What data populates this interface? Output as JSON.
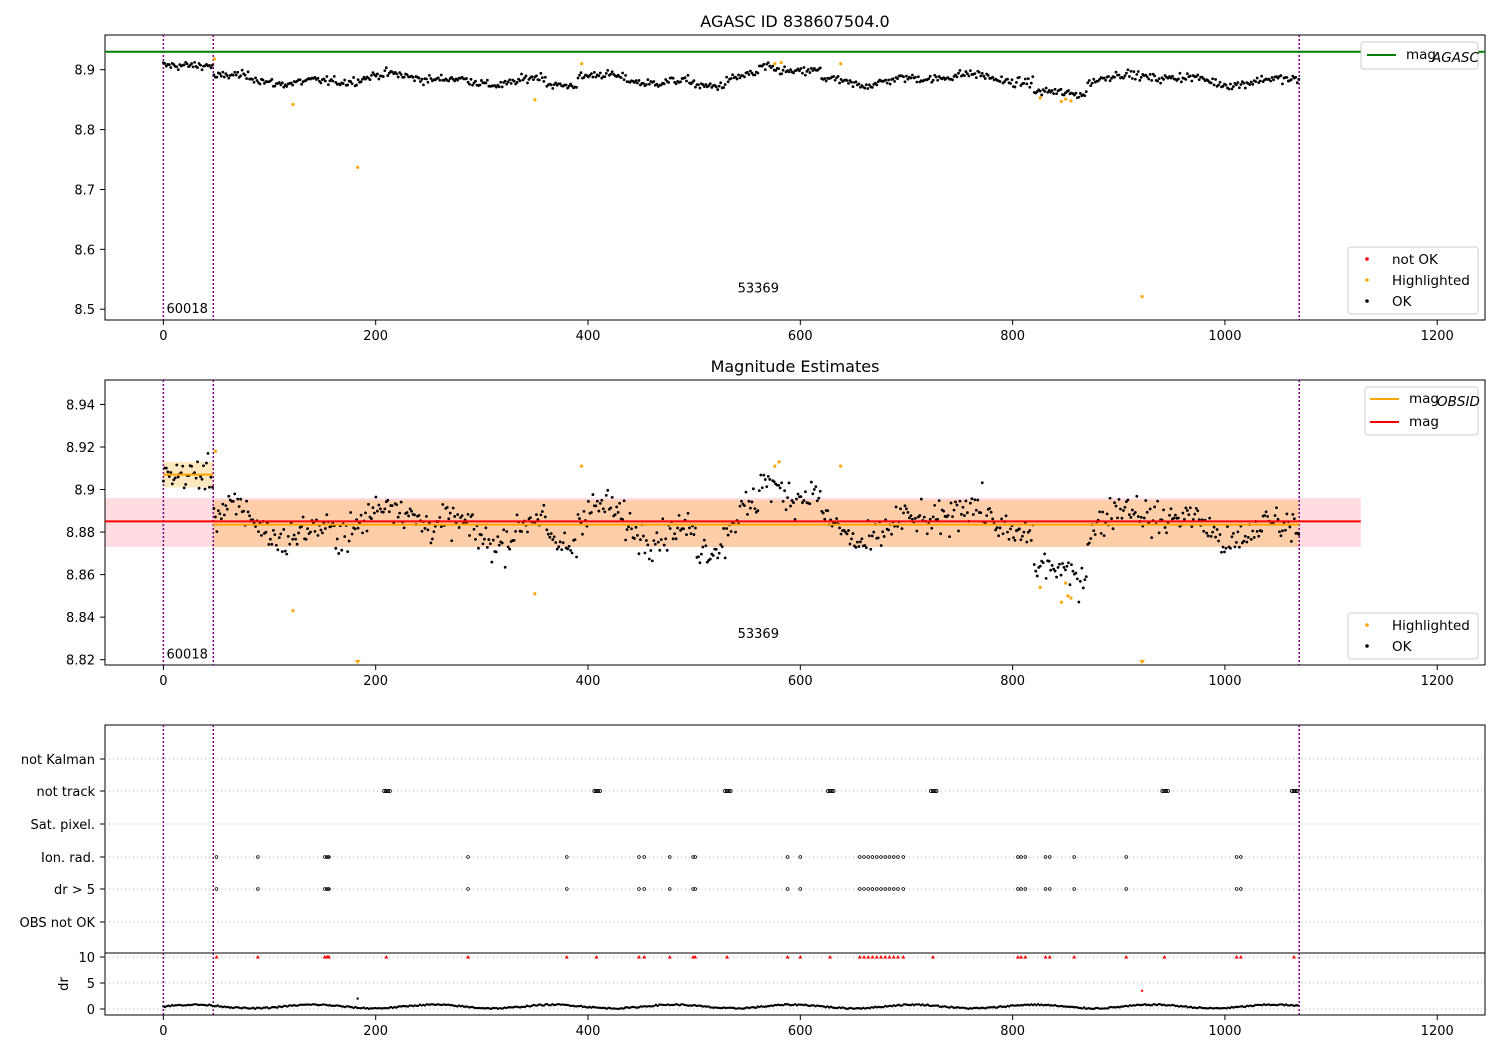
{
  "chart_data": [
    {
      "id": "top",
      "type": "scatter",
      "title": "AGASC ID 838607504.0",
      "xlim": [
        -55,
        1245
      ],
      "ylim": [
        8.482,
        8.958
      ],
      "xticks": [
        0,
        200,
        400,
        600,
        800,
        1000,
        1200
      ],
      "yticks": [
        8.5,
        8.6,
        8.7,
        8.8,
        8.9
      ],
      "hline": {
        "name": "mag_AGASC",
        "y": 8.93,
        "color": "#008000"
      },
      "vlines": {
        "x": [
          0,
          47,
          1070
        ],
        "color": "#800080"
      },
      "annotations": [
        {
          "text": "60018",
          "x": 2,
          "y": 8.5
        },
        {
          "text": "53369",
          "x": 540,
          "y": 8.535
        }
      ],
      "highlighted": [
        [
          48,
          8.918
        ],
        [
          122,
          8.842
        ],
        [
          183,
          8.737
        ],
        [
          350,
          8.85
        ],
        [
          394,
          8.91
        ],
        [
          576,
          8.91
        ],
        [
          582,
          8.912
        ],
        [
          638,
          8.91
        ],
        [
          826,
          8.853
        ],
        [
          846,
          8.847
        ],
        [
          850,
          8.851
        ],
        [
          855,
          8.848
        ],
        [
          922,
          8.521
        ]
      ],
      "legend_top": [
        {
          "label_main": "mag",
          "label_sub": "AGASC",
          "color": "#008000"
        }
      ],
      "legend_bottom": [
        {
          "label": "not OK",
          "color": "#ff0000"
        },
        {
          "label": "Highlighted",
          "color": "#ffa500"
        },
        {
          "label": "OK",
          "color": "#000000"
        }
      ],
      "colors": {
        "ok": "#000000",
        "highlighted": "#ffa500",
        "not_ok": "#ff0000"
      }
    },
    {
      "id": "middle",
      "type": "scatter",
      "title": "Magnitude Estimates",
      "xlim": [
        -55,
        1245
      ],
      "ylim": [
        8.8175,
        8.9515
      ],
      "xticks": [
        0,
        200,
        400,
        600,
        800,
        1000,
        1200
      ],
      "yticks": [
        8.82,
        8.84,
        8.86,
        8.88,
        8.9,
        8.92,
        8.94
      ],
      "mag": {
        "y": 8.885,
        "band": [
          8.873,
          8.896
        ],
        "x": [
          -55,
          1128
        ],
        "color": "#ff0000",
        "band_color": "#ffc0cb"
      },
      "mag_obsid": [
        {
          "x": [
            0,
            47
          ],
          "y": 8.907,
          "band": [
            8.901,
            8.913
          ]
        },
        {
          "x": [
            47,
            1070
          ],
          "y": 8.8835,
          "band": [
            8.873,
            8.895
          ]
        }
      ],
      "mag_obsid_color": "#ffa500",
      "vlines": {
        "x": [
          0,
          47,
          1070
        ],
        "color": "#800080"
      },
      "annotations": [
        {
          "text": "60018",
          "x": 2,
          "y": 8.8225
        },
        {
          "text": "53369",
          "x": 540,
          "y": 8.832
        }
      ],
      "highlighted": [
        [
          49,
          8.918
        ],
        [
          122,
          8.843
        ],
        [
          350,
          8.851
        ],
        [
          394,
          8.911
        ],
        [
          576,
          8.911
        ],
        [
          580,
          8.913
        ],
        [
          638,
          8.911
        ],
        [
          826,
          8.854
        ],
        [
          846,
          8.847
        ],
        [
          850,
          8.856
        ],
        [
          852,
          8.85
        ],
        [
          855,
          8.849
        ]
      ],
      "clipped_low": [
        183,
        922
      ],
      "legend_top": [
        {
          "label_main": "mag",
          "label_sub": "OBSID",
          "color": "#ffa500"
        },
        {
          "label_main": "mag",
          "label_sub": "",
          "color": "#ff0000"
        }
      ],
      "legend_bottom": [
        {
          "label": "Highlighted",
          "color": "#ffa500"
        },
        {
          "label": "OK",
          "color": "#000000"
        }
      ]
    },
    {
      "id": "flags",
      "type": "scatter",
      "xlim": [
        -55,
        1245
      ],
      "xticks": [
        0,
        200,
        400,
        600,
        800,
        1000,
        1200
      ],
      "categories": [
        "not Kalman",
        "not track",
        "Sat. pixel.",
        "Ion. rad.",
        "dr > 5",
        "OBS not OK"
      ],
      "vlines": {
        "x": [
          0,
          47,
          1070
        ],
        "color": "#800080"
      },
      "not_track_clusters": [
        210,
        408,
        531,
        628,
        725,
        943,
        1065
      ],
      "ion_rad_clusters": [
        50,
        89,
        152,
        154,
        155,
        156,
        287,
        380,
        448,
        453,
        477,
        499,
        501,
        588,
        600,
        656,
        660,
        664,
        668,
        672,
        676,
        680,
        684,
        688,
        692,
        697,
        805,
        808,
        812,
        831,
        835,
        858,
        907,
        1011,
        1015
      ],
      "dr_extra": [
        [
          183,
          2.0
        ],
        [
          922,
          3.5
        ]
      ],
      "dr_yticks": [
        0,
        5,
        10
      ],
      "dr_ylabel": "dr",
      "dr_ylim": [
        -0.8,
        10.6
      ]
    }
  ]
}
